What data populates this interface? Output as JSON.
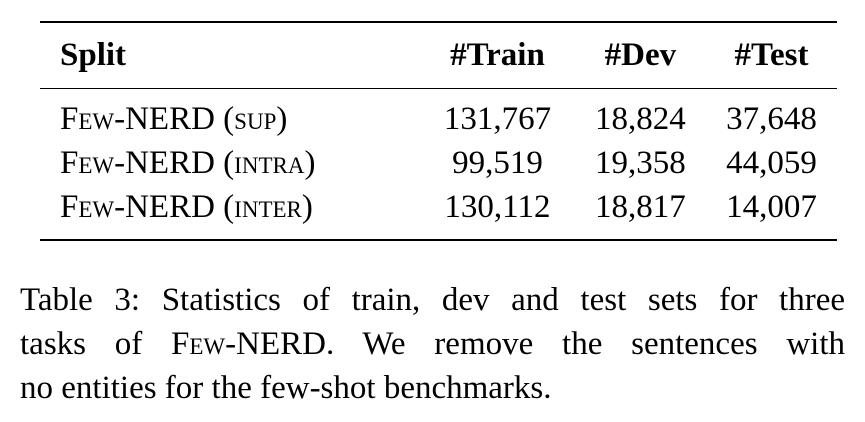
{
  "table": {
    "headers": [
      "Split",
      "#Train",
      "#Dev",
      "#Test"
    ],
    "rows": [
      {
        "split": "Few-NERD (sup)",
        "train": "131,767",
        "dev": "18,824",
        "test": "37,648"
      },
      {
        "split": "Few-NERD (intra)",
        "train": "99,519",
        "dev": "19,358",
        "test": "44,059"
      },
      {
        "split": "Few-NERD (inter)",
        "train": "130,112",
        "dev": "18,817",
        "test": "14,007"
      }
    ]
  },
  "caption": {
    "line1": "Table 3: Statistics of train, dev and test sets for three",
    "line2_pre": "tasks of ",
    "line2_name": "Few-NERD",
    "line2_post": ". We remove the sentences with",
    "line3": "no entities for the few-shot benchmarks."
  }
}
